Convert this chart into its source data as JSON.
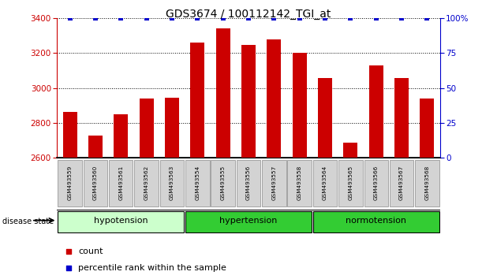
{
  "title": "GDS3674 / 100112142_TGI_at",
  "samples": [
    "GSM493559",
    "GSM493560",
    "GSM493561",
    "GSM493562",
    "GSM493563",
    "GSM493554",
    "GSM493555",
    "GSM493556",
    "GSM493557",
    "GSM493558",
    "GSM493564",
    "GSM493565",
    "GSM493566",
    "GSM493567",
    "GSM493568"
  ],
  "counts": [
    2860,
    2725,
    2850,
    2940,
    2945,
    3260,
    3340,
    3245,
    3280,
    3200,
    3055,
    2685,
    3130,
    3055,
    2940
  ],
  "percentiles_right": [
    100,
    100,
    100,
    100,
    100,
    100,
    100,
    100,
    100,
    100,
    100,
    100,
    100,
    100,
    100
  ],
  "ylim_left": [
    2600,
    3400
  ],
  "ylim_right": [
    0,
    100
  ],
  "yticks_left": [
    2600,
    2800,
    3000,
    3200,
    3400
  ],
  "yticks_right": [
    0,
    25,
    50,
    75,
    100
  ],
  "bar_color": "#CC0000",
  "dot_color": "#0000CC",
  "left_axis_color": "#CC0000",
  "right_axis_color": "#0000CC",
  "grid_color": "#000000",
  "bg_color": "#FFFFFF",
  "tick_label_bg": "#D3D3D3",
  "group_hypotension_color": "#CCFFCC",
  "group_hypertension_color": "#33CC33",
  "group_normotension_color": "#33CC33",
  "legend_count_color": "#CC0000",
  "legend_pct_color": "#0000CC",
  "group_defs": [
    [
      0,
      4,
      "hypotension",
      "#CCFFCC"
    ],
    [
      5,
      9,
      "hypertension",
      "#33CC33"
    ],
    [
      10,
      14,
      "normotension",
      "#33CC33"
    ]
  ]
}
